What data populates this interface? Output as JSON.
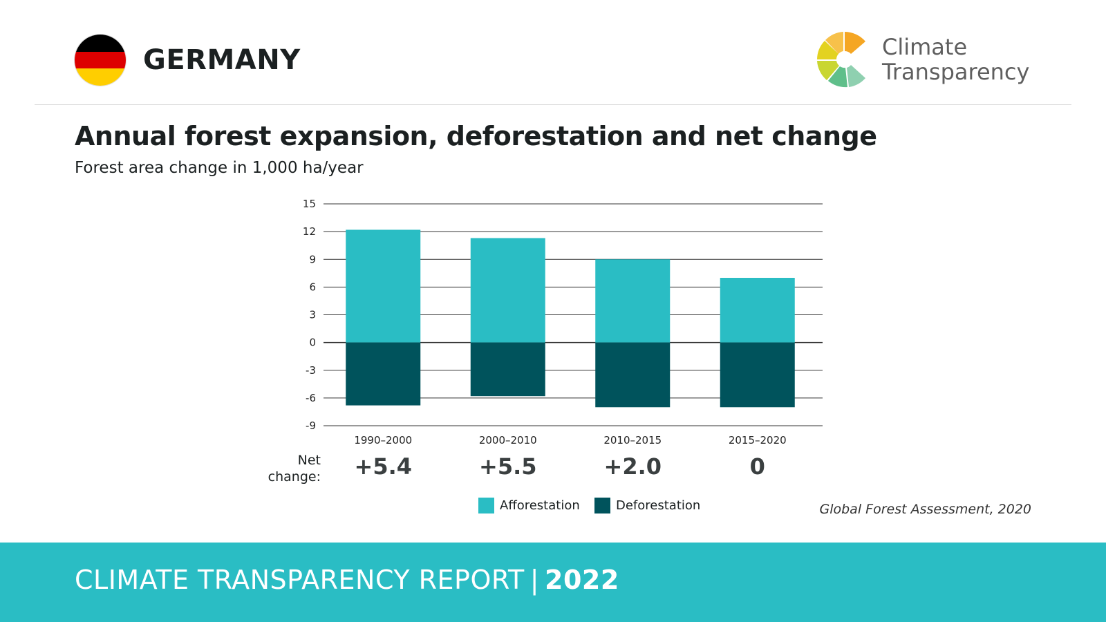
{
  "header": {
    "country": "GERMANY",
    "logo_line1": "Climate",
    "logo_line2": "Transparency"
  },
  "flag_colors": [
    "#000000",
    "#dd0000",
    "#ffce00"
  ],
  "chart_data": {
    "type": "bar",
    "stacked": true,
    "title": "Annual forest expansion, deforestation and net change",
    "subtitle": "Forest area change in 1,000 ha/year",
    "categories": [
      "1990–2000",
      "2000–2010",
      "2010–2015",
      "2015–2020"
    ],
    "series": [
      {
        "name": "Afforestation",
        "color": "#2abdc4",
        "values": [
          12.2,
          11.3,
          9.0,
          7.0
        ]
      },
      {
        "name": "Deforestation",
        "color": "#00535c",
        "values": [
          -6.8,
          -5.8,
          -7.0,
          -7.0
        ]
      }
    ],
    "ylim": [
      -9,
      15
    ],
    "yticks": [
      15,
      12,
      9,
      6,
      3,
      0,
      -3,
      -6,
      -9
    ],
    "grid": true,
    "net_change_label": "Net change:",
    "net_change": [
      "+5.4",
      "+5.5",
      "+2.0",
      "0"
    ],
    "source": "Global Forest Assessment, 2020"
  },
  "footer": {
    "report": "CLIMATE TRANSPARENCY REPORT",
    "separator": "|",
    "year": "2022",
    "color": "#2abdc4"
  }
}
